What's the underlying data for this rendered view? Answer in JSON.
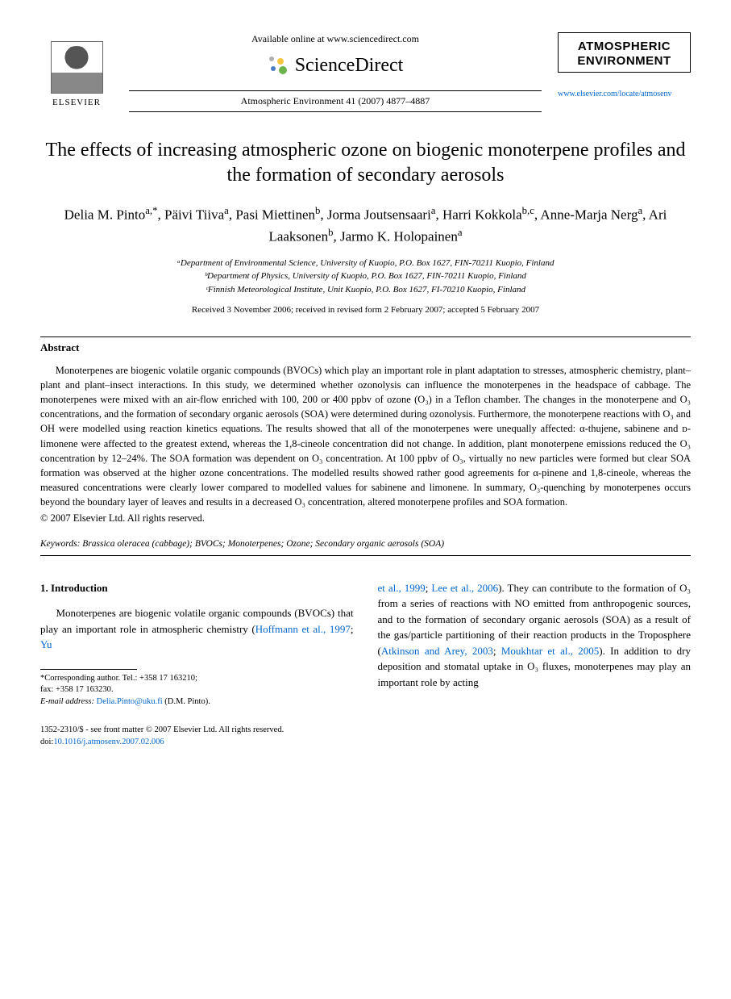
{
  "header": {
    "elsevier_label": "ELSEVIER",
    "available_text": "Available online at www.sciencedirect.com",
    "sd_brand": "ScienceDirect",
    "journal_ref": "Atmospheric Environment 41 (2007) 4877–4887",
    "journal_box_line1": "ATMOSPHERIC",
    "journal_box_line2": "ENVIRONMENT",
    "journal_link": "www.elsevier.com/locate/atmosenv",
    "sd_icon_colors": {
      "yellow": "#f5c542",
      "blue": "#4a7bc4",
      "green": "#6bb34a",
      "gray": "#b0b0b0"
    }
  },
  "title": "The effects of increasing atmospheric ozone on biogenic monoterpene profiles and the formation of secondary aerosols",
  "authors_html": "Delia M. Pinto<sup>a,*</sup>, Päivi Tiiva<sup>a</sup>, Pasi Miettinen<sup>b</sup>, Jorma Joutsensaari<sup>a</sup>, Harri Kokkola<sup>b,c</sup>, Anne-Marja Nerg<sup>a</sup>, Ari Laaksonen<sup>b</sup>, Jarmo K. Holopainen<sup>a</sup>",
  "affiliations": [
    "ᵃDepartment of Environmental Science, University of Kuopio, P.O. Box 1627, FIN-70211 Kuopio, Finland",
    "ᵇDepartment of Physics, University of Kuopio, P.O. Box 1627, FIN-70211 Kuopio, Finland",
    "ᶜFinnish Meteorological Institute, Unit Kuopio, P.O. Box 1627, FI-70210 Kuopio, Finland"
  ],
  "dates": "Received 3 November 2006; received in revised form 2 February 2007; accepted 5 February 2007",
  "abstract": {
    "heading": "Abstract",
    "body": "Monoterpenes are biogenic volatile organic compounds (BVOCs) which play an important role in plant adaptation to stresses, atmospheric chemistry, plant–plant and plant–insect interactions. In this study, we determined whether ozonolysis can influence the monoterpenes in the headspace of cabbage. The monoterpenes were mixed with an air-flow enriched with 100, 200 or 400 ppbv of ozone (O₃) in a Teflon chamber. The changes in the monoterpene and O₃ concentrations, and the formation of secondary organic aerosols (SOA) were determined during ozonolysis. Furthermore, the monoterpene reactions with O₃ and OH were modelled using reaction kinetics equations. The results showed that all of the monoterpenes were unequally affected: α-thujene, sabinene and ᴅ-limonene were affected to the greatest extend, whereas the 1,8-cineole concentration did not change. In addition, plant monoterpene emissions reduced the O₃ concentration by 12–24%. The SOA formation was dependent on O₃ concentration. At 100 ppbv of O₃, virtually no new particles were formed but clear SOA formation was observed at the higher ozone concentrations. The modelled results showed rather good agreements for α-pinene and 1,8-cineole, whereas the measured concentrations were clearly lower compared to modelled values for sabinene and limonene. In summary, O₃-quenching by monoterpenes occurs beyond the boundary layer of leaves and results in a decreased O₃ concentration, altered monoterpene profiles and SOA formation.",
    "copyright": "© 2007 Elsevier Ltd. All rights reserved."
  },
  "keywords": {
    "label": "Keywords:",
    "text": " Brassica oleracea (cabbage); BVOCs; Monoterpenes; Ozone; Secondary organic aerosols (SOA)"
  },
  "section1": {
    "heading": "1. Introduction",
    "col1_html": "Monoterpenes are biogenic volatile organic compounds (BVOCs) that play an important role in atmospheric chemistry (<span class=\"cite\">Hoffmann et al., 1997</span>; <span class=\"cite\">Yu</span>",
    "col2_html": "<span class=\"cite\">et al., 1999</span>; <span class=\"cite\">Lee et al., 2006</span>). They can contribute to the formation of O₃ from a series of reactions with NO emitted from anthropogenic sources, and to the formation of secondary organic aerosols (SOA) as a result of the gas/particle partitioning of their reaction products in the Troposphere (<span class=\"cite\">Atkinson and Arey, 2003</span>; <span class=\"cite\">Moukhtar et al., 2005</span>). In addition to dry deposition and stomatal uptake in O₃ fluxes, monoterpenes may play an important role by acting"
  },
  "footnote": {
    "corr": "*Corresponding author. Tel.: +358 17 163210;",
    "fax": "fax: +358 17 163230.",
    "email_label": "E-mail address:",
    "email": " Delia.Pinto@uku.fi",
    "email_tail": " (D.M. Pinto)."
  },
  "footer": {
    "line1": "1352-2310/$ - see front matter © 2007 Elsevier Ltd. All rights reserved.",
    "doi_label": "doi:",
    "doi": "10.1016/j.atmosenv.2007.02.006"
  },
  "colors": {
    "link": "#0066cc",
    "text": "#000000",
    "rule": "#000000"
  }
}
